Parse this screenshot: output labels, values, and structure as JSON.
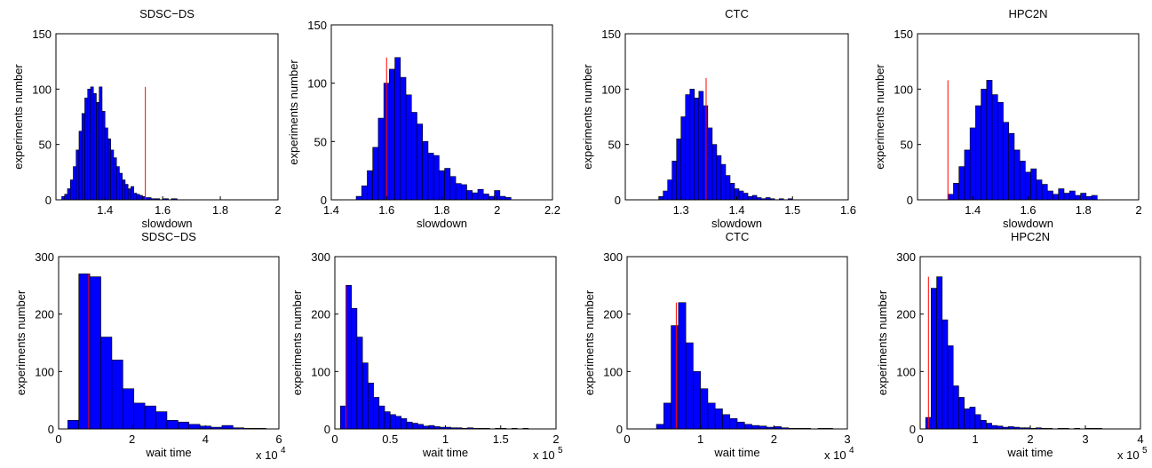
{
  "chart_data": [
    {
      "type": "histogram",
      "title": "SDSC−DS",
      "xlabel": "slowdown",
      "ylabel": "experiments number",
      "bins": [
        1.25,
        1.26,
        1.27,
        1.28,
        1.29,
        1.3,
        1.31,
        1.32,
        1.33,
        1.34,
        1.35,
        1.36,
        1.37,
        1.38,
        1.39,
        1.4,
        1.41,
        1.42,
        1.43,
        1.44,
        1.45,
        1.46,
        1.47,
        1.48,
        1.49,
        1.5,
        1.51,
        1.52,
        1.53,
        1.54,
        1.55,
        1.56,
        1.57,
        1.58,
        1.59,
        1.6,
        1.61,
        1.62,
        1.63,
        1.64,
        1.65
      ],
      "counts": [
        3,
        5,
        10,
        18,
        30,
        45,
        62,
        78,
        92,
        100,
        102,
        96,
        88,
        102,
        80,
        65,
        55,
        45,
        38,
        30,
        24,
        18,
        14,
        10,
        12,
        6,
        5,
        4,
        3,
        2,
        2,
        1,
        1,
        1,
        0,
        1,
        1,
        0,
        1,
        1
      ],
      "color": "#0000ff",
      "marker_line": {
        "x": 1.54,
        "height": 102,
        "color": "#ff0000"
      },
      "xlim": [
        1.23,
        2
      ],
      "xticks": [
        1.4,
        1.6,
        1.8,
        2
      ],
      "ylim": [
        0,
        150
      ],
      "yticks": [
        0,
        50,
        100,
        150
      ]
    },
    {
      "type": "histogram",
      "xlabel": "slowdown",
      "ylabel": "experiments number",
      "bins": [
        1.49,
        1.51,
        1.53,
        1.55,
        1.57,
        1.59,
        1.61,
        1.63,
        1.65,
        1.67,
        1.69,
        1.71,
        1.73,
        1.75,
        1.77,
        1.79,
        1.81,
        1.83,
        1.85,
        1.87,
        1.89,
        1.91,
        1.93,
        1.95,
        1.97,
        1.99,
        2.01,
        2.03,
        2.05
      ],
      "counts": [
        3,
        12,
        25,
        45,
        70,
        100,
        112,
        122,
        105,
        90,
        75,
        65,
        50,
        40,
        38,
        25,
        27,
        20,
        14,
        13,
        8,
        6,
        9,
        5,
        3,
        8,
        3,
        2
      ],
      "color": "#0000ff",
      "marker_line": {
        "x": 1.6,
        "height": 122,
        "color": "#ff0000"
      },
      "xlim": [
        1.4,
        2.2
      ],
      "xticks": [
        1.4,
        1.6,
        1.8,
        2,
        2.2
      ],
      "ylim": [
        0,
        150
      ],
      "yticks": [
        0,
        50,
        100,
        150
      ]
    },
    {
      "type": "histogram",
      "title": "CTC",
      "xlabel": "slowdown",
      "ylabel": "experiments number",
      "bins": [
        1.26,
        1.268,
        1.276,
        1.284,
        1.292,
        1.3,
        1.308,
        1.316,
        1.324,
        1.332,
        1.34,
        1.348,
        1.356,
        1.364,
        1.372,
        1.38,
        1.388,
        1.396,
        1.404,
        1.412,
        1.42,
        1.428,
        1.436,
        1.444,
        1.452,
        1.46,
        1.468,
        1.476,
        1.484,
        1.492,
        1.5
      ],
      "counts": [
        3,
        8,
        18,
        35,
        55,
        75,
        95,
        100,
        92,
        98,
        85,
        65,
        50,
        40,
        32,
        22,
        15,
        10,
        8,
        6,
        3,
        4,
        2,
        1,
        2,
        1,
        0,
        1,
        0,
        1
      ],
      "color": "#0000ff",
      "marker_line": {
        "x": 1.345,
        "height": 110,
        "color": "#ff0000"
      },
      "xlim": [
        1.2,
        1.6
      ],
      "xticks": [
        1.3,
        1.4,
        1.5,
        1.6
      ],
      "ylim": [
        0,
        150
      ],
      "yticks": [
        0,
        50,
        100,
        150
      ]
    },
    {
      "type": "histogram",
      "title": "HPC2N",
      "xlabel": "slowdown",
      "ylabel": "experiments number",
      "bins": [
        1.31,
        1.33,
        1.35,
        1.37,
        1.39,
        1.41,
        1.43,
        1.45,
        1.47,
        1.49,
        1.51,
        1.53,
        1.55,
        1.57,
        1.59,
        1.61,
        1.63,
        1.65,
        1.67,
        1.69,
        1.71,
        1.73,
        1.75,
        1.77,
        1.79,
        1.81,
        1.83,
        1.85
      ],
      "counts": [
        5,
        15,
        30,
        45,
        65,
        85,
        100,
        108,
        95,
        88,
        70,
        60,
        45,
        35,
        25,
        28,
        18,
        14,
        8,
        5,
        10,
        6,
        8,
        4,
        6,
        3,
        4
      ],
      "color": "#0000ff",
      "marker_line": {
        "x": 1.31,
        "height": 108,
        "color": "#ff0000"
      },
      "xlim": [
        1.2,
        2
      ],
      "xticks": [
        1.4,
        1.6,
        1.8,
        2
      ],
      "ylim": [
        0,
        150
      ],
      "yticks": [
        0,
        50,
        100,
        150
      ]
    },
    {
      "type": "histogram",
      "title": "SDSC−DS",
      "xlabel": "wait time",
      "ylabel": "experiments number",
      "x_multiplier": "x 10",
      "x_exponent": "4",
      "bins": [
        0.25,
        0.55,
        0.85,
        1.15,
        1.45,
        1.75,
        2.05,
        2.35,
        2.65,
        2.95,
        3.25,
        3.55,
        3.85,
        4.15,
        4.45,
        4.75,
        5.05,
        5.35,
        5.65
      ],
      "counts": [
        15,
        270,
        265,
        160,
        120,
        70,
        45,
        40,
        30,
        15,
        12,
        8,
        5,
        3,
        6,
        2,
        1,
        1
      ],
      "color": "#0000ff",
      "marker_line": {
        "x": 0.82,
        "height": 270,
        "color": "#ff0000"
      },
      "xlim": [
        0,
        6
      ],
      "xticks": [
        0,
        2,
        4,
        6
      ],
      "ylim": [
        0,
        300
      ],
      "yticks": [
        0,
        100,
        200,
        300
      ]
    },
    {
      "type": "histogram",
      "xlabel": "wait time",
      "ylabel": "experiments number",
      "x_multiplier": "x 10",
      "x_exponent": "5",
      "bins": [
        0.05,
        0.1,
        0.15,
        0.2,
        0.25,
        0.3,
        0.35,
        0.4,
        0.45,
        0.5,
        0.55,
        0.6,
        0.65,
        0.7,
        0.75,
        0.8,
        0.85,
        0.9,
        0.95,
        1,
        1.05,
        1.1,
        1.15,
        1.2,
        1.25,
        1.3,
        1.35,
        1.4,
        1.45,
        1.5,
        1.55,
        1.6,
        1.65,
        1.7,
        1.75
      ],
      "counts": [
        40,
        250,
        210,
        160,
        115,
        80,
        55,
        40,
        30,
        25,
        22,
        18,
        12,
        10,
        8,
        5,
        6,
        4,
        3,
        3,
        2,
        2,
        1,
        2,
        1,
        1,
        1,
        0,
        1,
        1,
        0,
        1,
        0,
        1
      ],
      "color": "#0000ff",
      "marker_line": {
        "x": 0.1,
        "height": 250,
        "color": "#ff0000"
      },
      "xlim": [
        0,
        2
      ],
      "xticks": [
        0,
        0.5,
        1,
        1.5,
        2
      ],
      "ylim": [
        0,
        300
      ],
      "yticks": [
        0,
        100,
        200,
        300
      ]
    },
    {
      "type": "histogram",
      "title": "CTC",
      "xlabel": "wait time",
      "ylabel": "experiments number",
      "x_multiplier": "x 10",
      "x_exponent": "4",
      "bins": [
        0.4,
        0.5,
        0.6,
        0.7,
        0.8,
        0.9,
        1,
        1.1,
        1.2,
        1.3,
        1.4,
        1.5,
        1.6,
        1.7,
        1.8,
        1.9,
        2,
        2.1,
        2.2,
        2.3,
        2.4,
        2.5,
        2.6,
        2.7,
        2.8
      ],
      "counts": [
        8,
        45,
        180,
        220,
        150,
        100,
        70,
        45,
        35,
        25,
        18,
        12,
        8,
        6,
        5,
        3,
        4,
        2,
        1,
        1,
        1,
        0,
        1,
        1
      ],
      "color": "#0000ff",
      "marker_line": {
        "x": 0.67,
        "height": 220,
        "color": "#ff0000"
      },
      "xlim": [
        0,
        3
      ],
      "xticks": [
        0,
        1,
        2,
        3
      ],
      "ylim": [
        0,
        300
      ],
      "yticks": [
        0,
        100,
        200,
        300
      ]
    },
    {
      "type": "histogram",
      "title": "HPC2N",
      "xlabel": "wait time",
      "ylabel": "experiments number",
      "x_multiplier": "x 10",
      "x_exponent": "5",
      "bins": [
        0.1,
        0.2,
        0.3,
        0.4,
        0.5,
        0.6,
        0.7,
        0.8,
        0.9,
        1,
        1.1,
        1.2,
        1.3,
        1.4,
        1.5,
        1.6,
        1.7,
        1.8,
        1.9,
        2,
        2.1,
        2.2,
        2.3,
        2.4,
        2.5,
        2.6,
        2.7,
        2.8,
        2.9,
        3,
        3.1,
        3.2,
        3.3
      ],
      "counts": [
        20,
        245,
        265,
        190,
        145,
        75,
        55,
        35,
        38,
        25,
        15,
        10,
        6,
        5,
        3,
        4,
        3,
        2,
        2,
        1,
        2,
        1,
        1,
        0,
        1,
        1,
        0,
        1,
        0,
        1,
        1,
        1
      ],
      "color": "#0000ff",
      "marker_line": {
        "x": 0.15,
        "height": 265,
        "color": "#ff0000"
      },
      "xlim": [
        0,
        4
      ],
      "xticks": [
        0,
        1,
        2,
        3,
        4
      ],
      "ylim": [
        0,
        300
      ],
      "yticks": [
        0,
        100,
        200,
        300
      ]
    }
  ]
}
